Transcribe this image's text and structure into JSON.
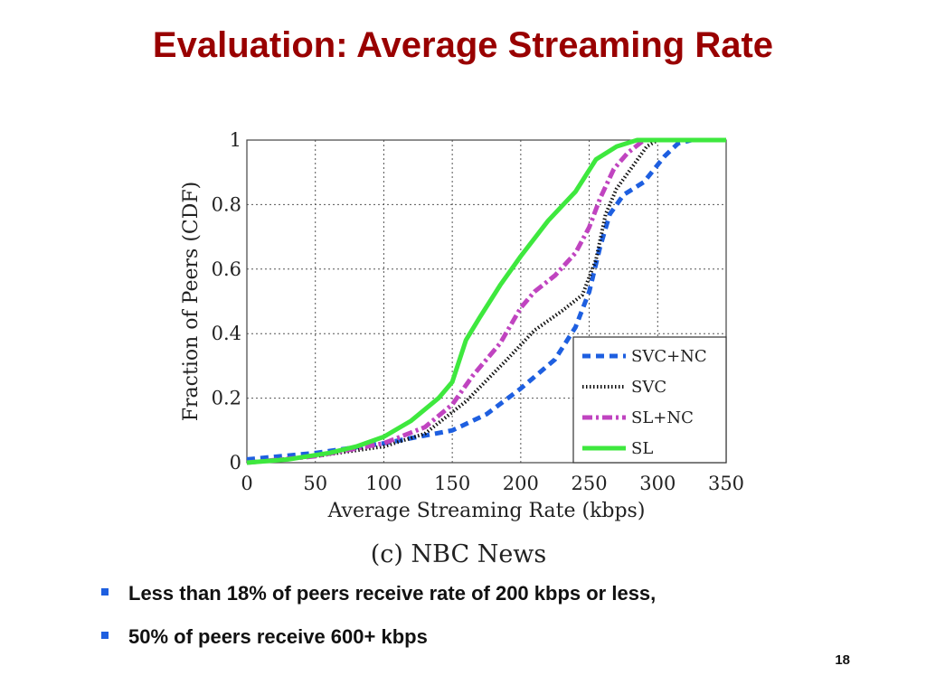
{
  "slide": {
    "title": "Evaluation: Average Streaming Rate",
    "bullets": [
      "Less than 18% of peers receive rate of 200 kbps or less,",
      "50% of peers receive 600+ kbps"
    ],
    "page_number": "18"
  },
  "chart_data": {
    "type": "line",
    "caption": "(c) NBC News",
    "xlabel": "Average Streaming Rate (kbps)",
    "ylabel": "Fraction of Peers (CDF)",
    "xlim": [
      0,
      350
    ],
    "ylim": [
      0,
      1
    ],
    "xticks": [
      "0",
      "50",
      "100",
      "150",
      "200",
      "250",
      "300",
      "350"
    ],
    "yticks": [
      "0",
      "0.2",
      "0.4",
      "0.6",
      "0.8",
      "1"
    ],
    "grid": true,
    "legend_position": "bottom-right",
    "series": [
      {
        "name": "SVC+NC",
        "color": "#1e5fe0",
        "style": "dashed",
        "points": [
          [
            0,
            0.01
          ],
          [
            50,
            0.03
          ],
          [
            100,
            0.06
          ],
          [
            150,
            0.1
          ],
          [
            175,
            0.15
          ],
          [
            200,
            0.23
          ],
          [
            225,
            0.32
          ],
          [
            240,
            0.42
          ],
          [
            250,
            0.53
          ],
          [
            258,
            0.67
          ],
          [
            265,
            0.77
          ],
          [
            275,
            0.83
          ],
          [
            290,
            0.87
          ],
          [
            305,
            0.95
          ],
          [
            315,
            0.99
          ],
          [
            325,
            1.0
          ],
          [
            350,
            1.0
          ]
        ]
      },
      {
        "name": "SVC",
        "color": "#111111",
        "style": "dotted",
        "points": [
          [
            0,
            0.0
          ],
          [
            50,
            0.02
          ],
          [
            100,
            0.05
          ],
          [
            130,
            0.09
          ],
          [
            160,
            0.19
          ],
          [
            190,
            0.32
          ],
          [
            210,
            0.41
          ],
          [
            230,
            0.47
          ],
          [
            245,
            0.52
          ],
          [
            255,
            0.63
          ],
          [
            262,
            0.77
          ],
          [
            270,
            0.85
          ],
          [
            282,
            0.92
          ],
          [
            292,
            0.98
          ],
          [
            300,
            1.0
          ],
          [
            350,
            1.0
          ]
        ]
      },
      {
        "name": "SL+NC",
        "color": "#c044c0",
        "style": "dashdot",
        "points": [
          [
            0,
            0.0
          ],
          [
            50,
            0.02
          ],
          [
            100,
            0.06
          ],
          [
            130,
            0.11
          ],
          [
            150,
            0.18
          ],
          [
            165,
            0.27
          ],
          [
            185,
            0.37
          ],
          [
            200,
            0.48
          ],
          [
            210,
            0.53
          ],
          [
            225,
            0.58
          ],
          [
            240,
            0.65
          ],
          [
            250,
            0.73
          ],
          [
            258,
            0.82
          ],
          [
            268,
            0.91
          ],
          [
            278,
            0.96
          ],
          [
            290,
            1.0
          ],
          [
            350,
            1.0
          ]
        ]
      },
      {
        "name": "SL",
        "color": "#3ee83e",
        "style": "solid",
        "points": [
          [
            0,
            0.0
          ],
          [
            30,
            0.01
          ],
          [
            60,
            0.03
          ],
          [
            80,
            0.05
          ],
          [
            100,
            0.08
          ],
          [
            120,
            0.13
          ],
          [
            140,
            0.2
          ],
          [
            150,
            0.25
          ],
          [
            160,
            0.38
          ],
          [
            170,
            0.45
          ],
          [
            185,
            0.55
          ],
          [
            200,
            0.64
          ],
          [
            220,
            0.75
          ],
          [
            240,
            0.84
          ],
          [
            255,
            0.94
          ],
          [
            270,
            0.98
          ],
          [
            285,
            1.0
          ],
          [
            350,
            1.0
          ]
        ]
      }
    ]
  }
}
